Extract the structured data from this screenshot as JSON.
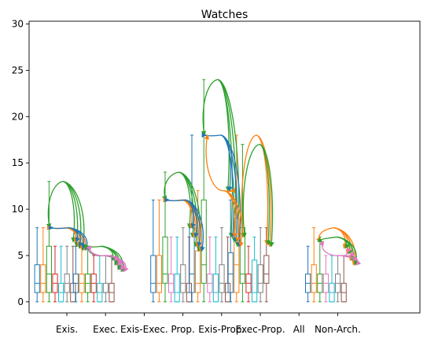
{
  "chart_data": {
    "type": "box",
    "title": "Watches",
    "xlabel": "",
    "ylabel": "",
    "ylim": [
      -1.2,
      30.3
    ],
    "yticks": [
      0,
      5,
      10,
      15,
      20,
      25,
      30
    ],
    "categories": [
      "Exis.",
      "Exec.",
      "Exis-Exec.",
      "Prop.",
      "Exis-Prop.",
      "Exec-Prop.",
      "All",
      "Non-Arch."
    ],
    "series_colors": [
      "#1f77b4",
      "#ff7f0e",
      "#2ca02c",
      "#d62728",
      "#9467bd",
      "#8c564b",
      "#e377c2",
      "#7f7f7f",
      "#bcbd22",
      "#17becf"
    ],
    "arc_colors": {
      "outer": "#2ca02c",
      "inner": "#1f77b4",
      "mid": "#ff7f0e",
      "pink": "#e377c2",
      "gray": "#7f7f7f"
    },
    "groups": [
      {
        "category": "Exis.",
        "boxes": [
          {
            "color": "#1f77b4",
            "min": 0,
            "q1": 1,
            "median": 2,
            "q3": 4,
            "max": 8
          },
          {
            "color": "#ff7f0e",
            "min": 0,
            "q1": 1,
            "median": 2,
            "q3": 4,
            "max": 8
          },
          {
            "color": "#2ca02c",
            "min": 0,
            "q1": 1,
            "median": 3,
            "q3": 6,
            "max": 13
          },
          {
            "color": "#d62728",
            "min": 0,
            "q1": 1,
            "median": 2,
            "q3": 3,
            "max": 6
          },
          {
            "color": "#17becf",
            "min": 0,
            "q1": 0,
            "median": 1,
            "q3": 2,
            "max": 6
          },
          {
            "color": "#7f7f7f",
            "min": 0,
            "q1": 1,
            "median": 2,
            "q3": 3,
            "max": 6
          },
          {
            "color": "#8c564b",
            "min": 0,
            "q1": 0,
            "median": 1,
            "q3": 2,
            "max": 6
          }
        ]
      },
      {
        "category": "Exec.",
        "boxes": [
          {
            "color": "#1f77b4",
            "min": 0,
            "q1": 1,
            "median": 2,
            "q3": 3,
            "max": 6
          },
          {
            "color": "#ff7f0e",
            "min": 0,
            "q1": 1,
            "median": 2,
            "q3": 3,
            "max": 6
          },
          {
            "color": "#2ca02c",
            "min": 0,
            "q1": 1,
            "median": 2,
            "q3": 3,
            "max": 6
          },
          {
            "color": "#d62728",
            "min": 0,
            "q1": 1,
            "median": 2,
            "q3": 3,
            "max": 5
          },
          {
            "color": "#17becf",
            "min": 0,
            "q1": 0,
            "median": 1,
            "q3": 2,
            "max": 5
          },
          {
            "color": "#7f7f7f",
            "min": 0,
            "q1": 1,
            "median": 1,
            "q3": 2,
            "max": 5
          },
          {
            "color": "#8c564b",
            "min": 0,
            "q1": 0,
            "median": 1,
            "q3": 2,
            "max": 5
          }
        ]
      },
      {
        "category": "Prop.",
        "boxes": [
          {
            "color": "#1f77b4",
            "min": 0,
            "q1": 1,
            "median": 2,
            "q3": 5,
            "max": 11
          },
          {
            "color": "#ff7f0e",
            "min": 0,
            "q1": 1,
            "median": 2,
            "q3": 5,
            "max": 11
          },
          {
            "color": "#2ca02c",
            "min": 0,
            "q1": 2,
            "median": 3,
            "q3": 7,
            "max": 14
          },
          {
            "color": "#e377c2",
            "min": 0,
            "q1": 1,
            "median": 2,
            "q3": 3,
            "max": 7
          },
          {
            "color": "#17becf",
            "min": 0,
            "q1": 0,
            "median": 1,
            "q3": 3,
            "max": 7
          },
          {
            "color": "#7f7f7f",
            "min": 0,
            "q1": 1,
            "median": 2,
            "q3": 4,
            "max": 8
          },
          {
            "color": "#8c564b",
            "min": 0,
            "q1": 0,
            "median": 1,
            "q3": 2,
            "max": 7
          }
        ]
      },
      {
        "category": "Exis-Prop.",
        "boxes": [
          {
            "color": "#1f77b4",
            "min": 0,
            "q1": 1,
            "median": 3,
            "q3": 8,
            "max": 18
          },
          {
            "color": "#ff7f0e",
            "min": 0,
            "q1": 1,
            "median": 2,
            "q3": 5.5,
            "max": 12
          },
          {
            "color": "#2ca02c",
            "min": 0,
            "q1": 2,
            "median": 4,
            "q3": 11,
            "max": 24
          },
          {
            "color": "#e377c2",
            "min": 0,
            "q1": 1,
            "median": 2,
            "q3": 3,
            "max": 7
          },
          {
            "color": "#17becf",
            "min": 0,
            "q1": 0,
            "median": 1,
            "q3": 3,
            "max": 7
          },
          {
            "color": "#7f7f7f",
            "min": 0,
            "q1": 1,
            "median": 2,
            "q3": 4,
            "max": 8
          },
          {
            "color": "#8c564b",
            "min": 0,
            "q1": 0,
            "median": 1,
            "q3": 2,
            "max": 7
          }
        ]
      },
      {
        "category": "Exec-Prop.",
        "boxes": [
          {
            "color": "#1f77b4",
            "min": 0,
            "q1": 1,
            "median": 3,
            "q3": 5.3,
            "max": 11
          },
          {
            "color": "#ff7f0e",
            "min": 0,
            "q1": 1,
            "median": 4,
            "q3": 9,
            "max": 18
          },
          {
            "color": "#2ca02c",
            "min": 0,
            "q1": 2,
            "median": 3,
            "q3": 8,
            "max": 17
          },
          {
            "color": "#d62728",
            "min": 0,
            "q1": 1,
            "median": 2,
            "q3": 3,
            "max": 6
          },
          {
            "color": "#17becf",
            "min": 0,
            "q1": 0,
            "median": 1,
            "q3": 4.5,
            "max": 7
          },
          {
            "color": "#7f7f7f",
            "min": 0,
            "q1": 1,
            "median": 2,
            "q3": 4,
            "max": 8
          },
          {
            "color": "#8c564b",
            "min": 0,
            "q1": 2,
            "median": 3,
            "q3": 5,
            "max": 8
          }
        ]
      },
      {
        "category": "Non-Arch.",
        "boxes": [
          {
            "color": "#1f77b4",
            "min": 0,
            "q1": 1,
            "median": 2,
            "q3": 3,
            "max": 6
          },
          {
            "color": "#ff7f0e",
            "min": 0,
            "q1": 1,
            "median": 2,
            "q3": 4,
            "max": 8
          },
          {
            "color": "#2ca02c",
            "min": 0,
            "q1": 1,
            "median": 2,
            "q3": 3,
            "max": 7
          },
          {
            "color": "#e377c2",
            "min": 0,
            "q1": 1,
            "median": 2,
            "q3": 3,
            "max": 5
          },
          {
            "color": "#17becf",
            "min": 0,
            "q1": 0,
            "median": 1,
            "q3": 2,
            "max": 5
          },
          {
            "color": "#7f7f7f",
            "min": 0,
            "q1": 1,
            "median": 2,
            "q3": 3,
            "max": 5
          },
          {
            "color": "#8c564b",
            "min": 0,
            "q1": 0,
            "median": 1,
            "q3": 2,
            "max": 5
          }
        ]
      }
    ],
    "arc_spreads": [
      {
        "category": "Exis.",
        "sources": [
          {
            "color": "#2ca02c",
            "y": 13
          },
          {
            "color": "#ff7f0e",
            "y": 8
          },
          {
            "color": "#1f77b4",
            "y": 8
          }
        ],
        "targets_y": [
          8,
          6.5,
          6,
          5.8,
          5.6
        ]
      },
      {
        "category": "Exec.",
        "sources": [
          {
            "color": "#2ca02c",
            "y": 6
          },
          {
            "color": "#7f7f7f",
            "y": 5
          },
          {
            "color": "#e377c2",
            "y": 5
          }
        ],
        "targets_y": [
          6,
          4.5,
          4,
          3.5,
          3.3
        ]
      },
      {
        "category": "Prop.",
        "sources": [
          {
            "color": "#2ca02c",
            "y": 14
          },
          {
            "color": "#ff7f0e",
            "y": 11
          },
          {
            "color": "#1f77b4",
            "y": 11
          }
        ],
        "targets_y": [
          11,
          8,
          7,
          6,
          5.5
        ]
      },
      {
        "category": "Exis-Prop.",
        "sources": [
          {
            "color": "#2ca02c",
            "y": 24
          },
          {
            "color": "#1f77b4",
            "y": 18
          },
          {
            "color": "#ff7f0e",
            "y": 12
          }
        ],
        "targets_y": [
          18,
          12,
          7,
          6.5,
          6
        ]
      },
      {
        "category": "Exec-Prop.",
        "sources": [
          {
            "color": "#ff7f0e",
            "y": 18
          },
          {
            "color": "#2ca02c",
            "y": 17
          }
        ],
        "targets_y": [
          7,
          6.2,
          6
        ]
      },
      {
        "category": "Non-Arch.",
        "sources": [
          {
            "color": "#ff7f0e",
            "y": 8
          },
          {
            "color": "#2ca02c",
            "y": 7
          },
          {
            "color": "#e377c2",
            "y": 5
          }
        ],
        "targets_y": [
          6.5,
          5.8,
          5.2,
          4.5,
          4
        ]
      }
    ]
  }
}
